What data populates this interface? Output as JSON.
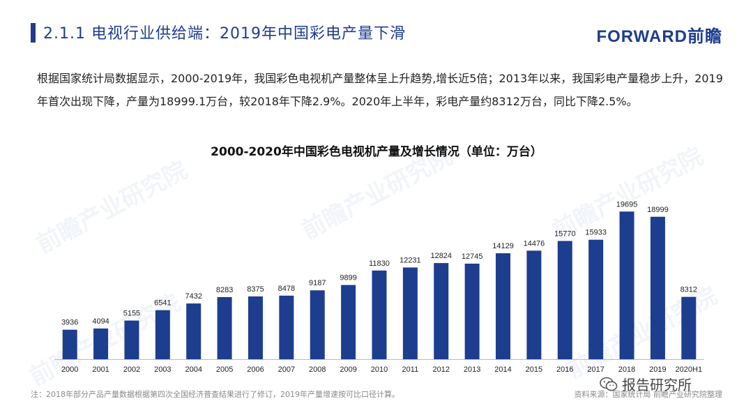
{
  "header": {
    "title": "2.1.1 电视行业供给端：2019年中国彩电产量下滑",
    "logo": "FORWARD前瞻"
  },
  "body_text": "根据国家统计局数据显示，2000-2019年，我国彩色电视机产量整体呈上升趋势,增长近5倍；2013年以来，我国彩电产量稳步上升，2019年首次出现下降，产量为18999.1万台，较2018年下降2.9%。2020年上半年，彩电产量约8312万台，同比下降2.5%。",
  "chart_data": {
    "type": "bar",
    "title": "2000-2020年中国彩色电视机产量及增长情况（单位：万台）",
    "categories": [
      "2000",
      "2001",
      "2002",
      "2003",
      "2004",
      "2005",
      "2006",
      "2007",
      "2008",
      "2009",
      "2010",
      "2011",
      "2012",
      "2013",
      "2014",
      "2015",
      "2016",
      "2017",
      "2018",
      "2019",
      "2020H1"
    ],
    "values": [
      3936,
      4094,
      5155,
      6541,
      7432,
      8283,
      8375,
      8478,
      9187,
      9899,
      11830,
      12231,
      12824,
      12745,
      14129,
      14476,
      15770,
      15933,
      19695,
      18999,
      8312
    ],
    "ylim": [
      0,
      20000
    ],
    "grid": false,
    "legend": "none",
    "bar_color": "#1d3d8f",
    "xlabel": "",
    "ylabel": ""
  },
  "footer": {
    "note": "注：2018年部分产品产量数据根据第四次全国经济普查结果进行了修订，2019年产量增速按可比口径计算。",
    "source": "资料来源：国家统计局 前瞻产业研究院整理",
    "wechat": "报告研究所"
  },
  "watermark_text": "前瞻产业研究院"
}
